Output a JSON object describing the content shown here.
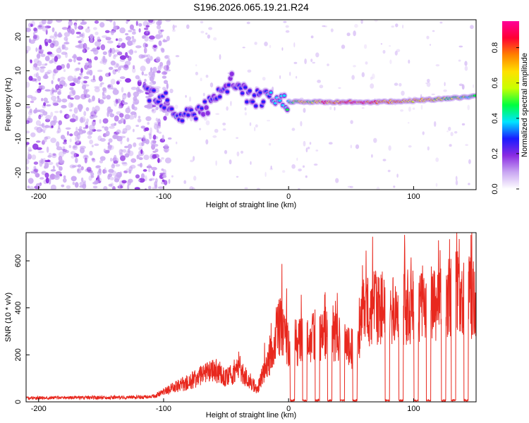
{
  "figure_title": "S196.2026.065.19.21.R24",
  "chart_data": [
    {
      "type": "heatmap",
      "title": "S196.2026.065.19.21.R24",
      "xlabel": "Height of straight line (km)",
      "ylabel": "Frequency (Hz)",
      "xlim": [
        -210,
        150
      ],
      "ylim": [
        -25,
        25
      ],
      "xticks": [
        -200,
        -100,
        0,
        100
      ],
      "yticks": [
        -20,
        -10,
        0,
        10,
        20
      ],
      "colorbar": {
        "label": "Normalized spectral amplitude",
        "range": [
          0,
          0.95
        ],
        "ticks": [
          0.0,
          0.2,
          0.4,
          0.6,
          0.8
        ],
        "colors": [
          "#ffffff",
          "#c9a6f2",
          "#8a2be2",
          "#1a1aff",
          "#00e5ff",
          "#00ff40",
          "#c8ff00",
          "#ffe000",
          "#ff8000",
          "#ff0033",
          "#ff0099"
        ]
      },
      "noise_region_x": [
        -210,
        -95
      ],
      "ridge": {
        "x": [
          -115,
          -105,
          -95,
          -88,
          -82,
          -75,
          -68,
          -60,
          -52,
          -46,
          -40,
          -34,
          -28,
          -22,
          -15,
          -8,
          0,
          10,
          20,
          30,
          40,
          50,
          60,
          70,
          80,
          90,
          100,
          110,
          120,
          130,
          140,
          150
        ],
        "frequency": [
          4,
          3,
          0,
          -3,
          -3,
          -2,
          -1,
          1,
          4,
          7,
          6,
          3,
          2,
          2,
          1.5,
          1,
          1,
          0.8,
          0.8,
          0.8,
          0.8,
          0.8,
          0.8,
          0.8,
          0.9,
          1,
          1.2,
          1.4,
          1.6,
          1.9,
          2.2,
          2.5
        ],
        "amplitude": [
          0.25,
          0.3,
          0.3,
          0.35,
          0.3,
          0.3,
          0.25,
          0.3,
          0.3,
          0.25,
          0.3,
          0.3,
          0.35,
          0.35,
          0.4,
          0.4,
          0.45,
          0.6,
          0.65,
          0.85,
          0.8,
          0.85,
          0.9,
          0.85,
          0.8,
          0.75,
          0.7,
          0.7,
          0.65,
          0.6,
          0.55,
          0.5
        ]
      }
    },
    {
      "type": "line",
      "xlabel": "Height of straight line (km)",
      "ylabel": "SNR (10 * v/v)",
      "xlim": [
        -210,
        150
      ],
      "ylim": [
        0,
        720
      ],
      "xticks": [
        -200,
        -100,
        0,
        100
      ],
      "yticks": [
        0,
        200,
        400,
        600
      ],
      "series": [
        {
          "name": "SNR",
          "color": "#e8281e",
          "envelope_x": [
            -210,
            -150,
            -110,
            -100,
            -90,
            -80,
            -70,
            -60,
            -55,
            -50,
            -45,
            -40,
            -35,
            -30,
            -25,
            -20,
            -15,
            -10,
            -5,
            0,
            10,
            20,
            30,
            40,
            50,
            55,
            60,
            70,
            80,
            90,
            100,
            110,
            120,
            130,
            140,
            150
          ],
          "envelope_y": [
            18,
            20,
            22,
            45,
            70,
            90,
            120,
            150,
            140,
            110,
            130,
            170,
            120,
            90,
            60,
            140,
            200,
            330,
            350,
            260,
            280,
            300,
            330,
            280,
            250,
            260,
            420,
            430,
            400,
            430,
            440,
            450,
            440,
            480,
            520,
            450
          ],
          "dropouts_x": [
            3,
            13,
            23,
            33,
            43,
            53,
            79,
            90,
            102,
            112,
            124,
            132,
            142
          ]
        }
      ]
    }
  ]
}
